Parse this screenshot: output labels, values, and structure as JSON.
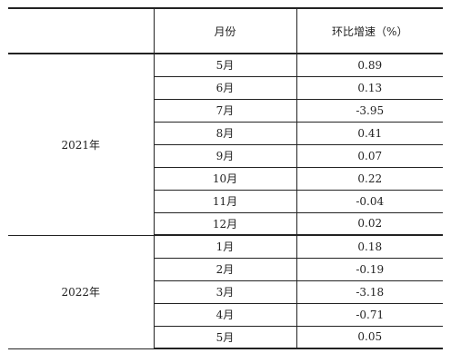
{
  "header": {
    "month": "月份",
    "rate": "环比增速（%）"
  },
  "groups": [
    {
      "year": "2021年",
      "rows": [
        {
          "month": "5月",
          "value": "0.89"
        },
        {
          "month": "6月",
          "value": "0.13"
        },
        {
          "month": "7月",
          "value": "-3.95"
        },
        {
          "month": "8月",
          "value": "0.41"
        },
        {
          "month": "9月",
          "value": "0.07"
        },
        {
          "month": "10月",
          "value": "0.22"
        },
        {
          "month": "11月",
          "value": "-0.04"
        },
        {
          "month": "12月",
          "value": "0.02"
        }
      ]
    },
    {
      "year": "2022年",
      "rows": [
        {
          "month": "1月",
          "value": "0.18"
        },
        {
          "month": "2月",
          "value": "-0.19"
        },
        {
          "month": "3月",
          "value": "-3.18"
        },
        {
          "month": "4月",
          "value": "-0.71"
        },
        {
          "month": "5月",
          "value": "0.05"
        }
      ]
    }
  ]
}
